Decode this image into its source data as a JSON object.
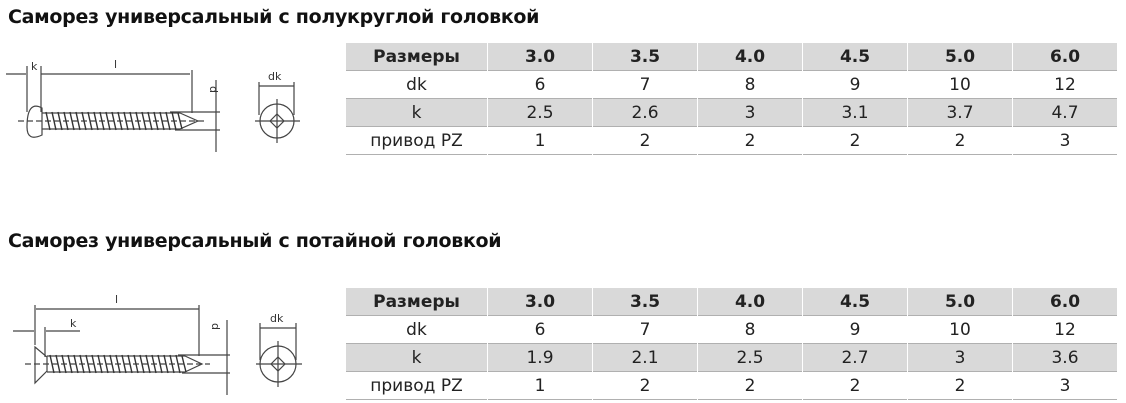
{
  "sections": [
    {
      "title": "Саморез универсальный с полукруглой головкой",
      "diagram": {
        "labels": {
          "k": "k",
          "l": "l",
          "d": "d",
          "dk": "dk"
        },
        "head_type": "pan-head"
      },
      "table": {
        "header": [
          "Размеры",
          "3.0",
          "3.5",
          "4.0",
          "4.5",
          "5.0",
          "6.0"
        ],
        "rows": [
          [
            "dk",
            "6",
            "7",
            "8",
            "9",
            "10",
            "12"
          ],
          [
            "k",
            "2.5",
            "2.6",
            "3",
            "3.1",
            "3.7",
            "4.7"
          ],
          [
            "привод PZ",
            "1",
            "2",
            "2",
            "2",
            "2",
            "3"
          ]
        ]
      }
    },
    {
      "title": "Саморез универсальный с потайной головкой",
      "diagram": {
        "labels": {
          "k": "k",
          "l": "l",
          "d": "d",
          "dk": "dk"
        },
        "head_type": "countersunk-head"
      },
      "table": {
        "header": [
          "Размеры",
          "3.0",
          "3.5",
          "4.0",
          "4.5",
          "5.0",
          "6.0"
        ],
        "rows": [
          [
            "dk",
            "6",
            "7",
            "8",
            "9",
            "10",
            "12"
          ],
          [
            "k",
            "1.9",
            "2.1",
            "2.5",
            "2.7",
            "3",
            "3.6"
          ],
          [
            "привод PZ",
            "1",
            "2",
            "2",
            "2",
            "2",
            "3"
          ]
        ]
      }
    }
  ],
  "colors": {
    "shade": "#d9d9d9",
    "border": "#b0b0b0"
  }
}
